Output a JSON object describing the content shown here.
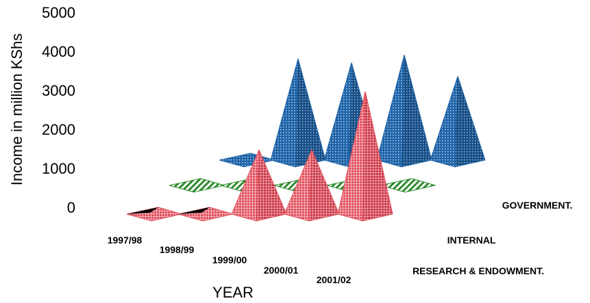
{
  "chart_data": {
    "type": "bar",
    "style": "3d-pyramid",
    "ylabel": "Income in million KShs",
    "xlabel": "YEAR",
    "ylim": [
      0,
      5000
    ],
    "yticks": [
      "0",
      "1000",
      "2000",
      "3000",
      "4000",
      "5000"
    ],
    "categories": [
      "1997/98",
      "1998/99",
      "1999/00",
      "2000/01",
      "2001/02"
    ],
    "series": [
      {
        "name": "GOVERNMENT.",
        "color": "#1f64a8",
        "pattern": "dots",
        "values": [
          0,
          2600,
          2500,
          2700,
          2150
        ]
      },
      {
        "name": "INTERNAL",
        "color": "#2e8b2e",
        "pattern": "stripes",
        "values": [
          0,
          150,
          150,
          150,
          100
        ]
      },
      {
        "name": "RESEARCH & ENDOWMENT.",
        "color": "#e0505c",
        "pattern": "grid",
        "values": [
          50,
          50,
          1650,
          1650,
          3150
        ]
      }
    ]
  }
}
